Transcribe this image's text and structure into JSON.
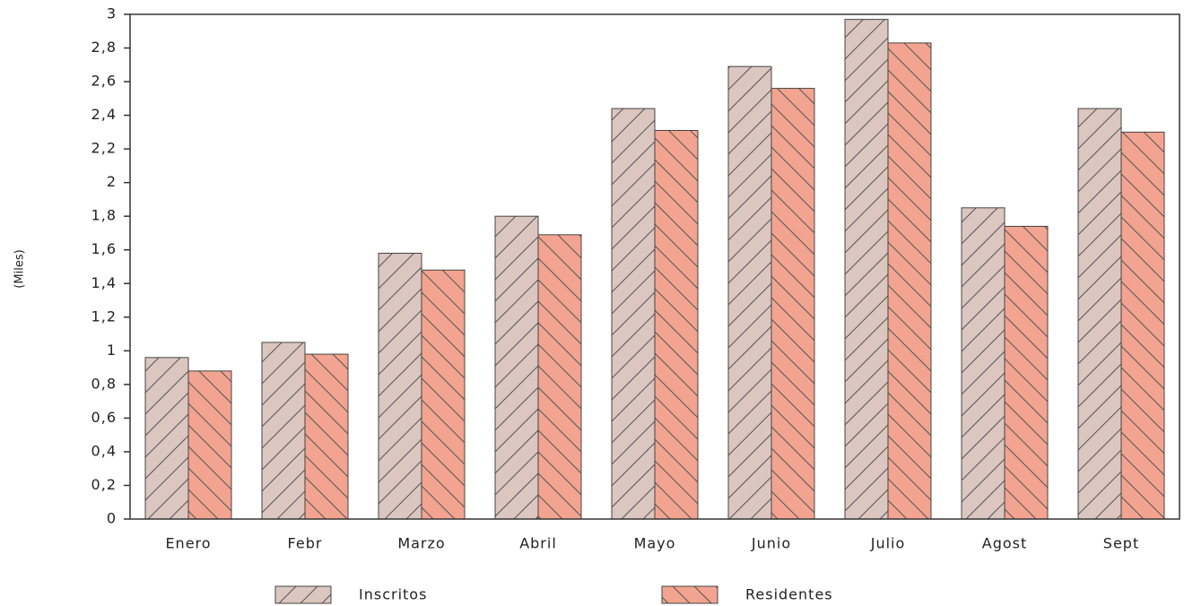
{
  "chart_data": {
    "type": "bar",
    "y_label": "(Miles)",
    "categories": [
      "Enero",
      "Febr",
      "Marzo",
      "Abril",
      "Mayo",
      "Junio",
      "Julio",
      "Agost",
      "Sept"
    ],
    "series": [
      {
        "name": "Inscritos",
        "color": "#dcc6c0",
        "values": [
          0.96,
          1.05,
          1.58,
          1.8,
          2.44,
          2.69,
          2.97,
          1.85,
          2.44
        ]
      },
      {
        "name": "Residentes",
        "color": "#f2a490",
        "values": [
          0.88,
          0.98,
          1.48,
          1.69,
          2.31,
          2.56,
          2.83,
          1.74,
          2.3
        ]
      }
    ],
    "ylim": [
      0,
      3
    ],
    "yticks": [
      0,
      {
        "value": 0.2,
        "label": "0,2"
      },
      {
        "value": 0.4,
        "label": "0,4"
      },
      {
        "value": 0.6,
        "label": "0,6"
      },
      {
        "value": 0.8,
        "label": "0,8"
      },
      1,
      {
        "value": 1.2,
        "label": "1,2"
      },
      {
        "value": 1.4,
        "label": "1,4"
      },
      {
        "value": 1.6,
        "label": "1,6"
      },
      {
        "value": 1.8,
        "label": "1,8"
      },
      2,
      {
        "value": 2.2,
        "label": "2,2"
      },
      {
        "value": 2.4,
        "label": "2,4"
      },
      {
        "value": 2.6,
        "label": "2,6"
      },
      {
        "value": 2.8,
        "label": "2,8"
      },
      3
    ]
  }
}
